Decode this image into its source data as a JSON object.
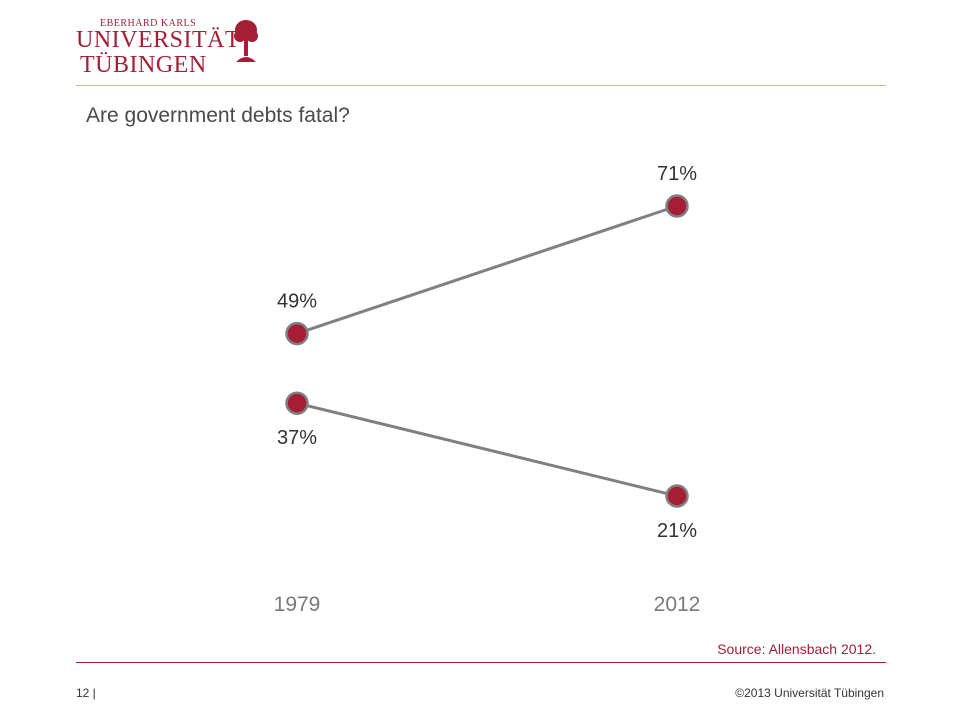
{
  "logo": {
    "line1": "EBERHARD KARLS",
    "line2": "UNIVERSITÄT",
    "line3": "TÜBINGEN"
  },
  "title": "Are government debts fatal?",
  "source": "Source: Allensbach 2012.",
  "footer": {
    "page": "12 |",
    "copyright": "©2013 Universität Tübingen"
  },
  "colors": {
    "brand": "#a51e36",
    "marker": "#a51e36",
    "line": "#808080",
    "logo_text": "#a51e36",
    "top_rule": "#d3b58a",
    "bottom_rule": "#a51e36",
    "value_label": "#333333",
    "axis_label": "#7a7a7a"
  },
  "chart_data": {
    "type": "line",
    "x": [
      "1979",
      "2012"
    ],
    "series": [
      {
        "values": [
          49,
          71
        ],
        "labels": [
          "49%",
          "71%"
        ]
      },
      {
        "values": [
          37,
          21
        ],
        "labels": [
          "37%",
          "21%"
        ]
      }
    ],
    "ylim": [
      21,
      71
    ],
    "legend": "none",
    "grid": false
  }
}
